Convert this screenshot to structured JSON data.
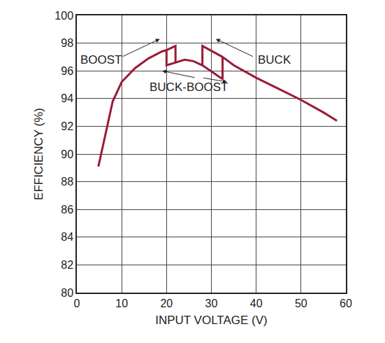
{
  "chart_data": {
    "type": "line",
    "x_label": "INPUT VOLTAGE (V)",
    "y_label": "EFFICIENCY (%)",
    "x": [
      4.8,
      8,
      10,
      13,
      16,
      19,
      20,
      22,
      22,
      24,
      26,
      28,
      32.5,
      32.5,
      35,
      40,
      45,
      50,
      55,
      58,
      null,
      20,
      20,
      22,
      null,
      28,
      28,
      32.5
    ],
    "series": [
      {
        "color": "#9b1a35",
        "values": [
          89.1,
          93.8,
          95.2,
          96.2,
          96.9,
          97.4,
          97.5,
          97.8,
          96.6,
          96.8,
          96.7,
          96.4,
          95.4,
          97.0,
          96.4,
          95.5,
          94.7,
          93.9,
          93.0,
          92.4,
          null,
          97.5,
          96.4,
          96.6,
          null,
          96.4,
          97.8,
          97.0
        ]
      }
    ],
    "xlim": [
      0,
      60
    ],
    "xticks": [
      0,
      10,
      20,
      30,
      40,
      50,
      60
    ],
    "ylim": [
      80,
      100
    ],
    "yticks": [
      80,
      82,
      84,
      86,
      88,
      90,
      92,
      94,
      96,
      98,
      100
    ],
    "grid": true,
    "annotations": [
      "BOOST",
      "BUCK",
      "BUCK-BOOST"
    ]
  }
}
